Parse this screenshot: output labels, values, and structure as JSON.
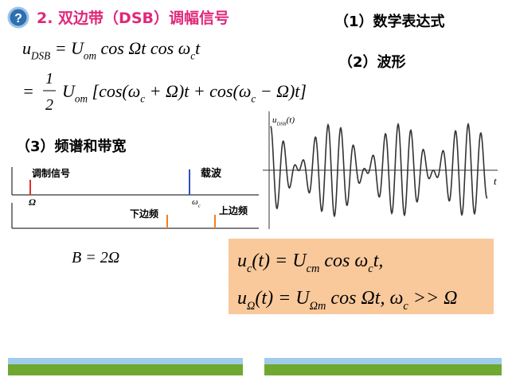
{
  "header": {
    "icon": "?",
    "title": "2. 双边带（DSB）调幅信号"
  },
  "sections": {
    "math": "（1）数学表达式",
    "wave": "（2）波形",
    "spectrum": "（3）频谱和带宽"
  },
  "formula1": [
    {
      "t": "u"
    },
    {
      "s": "DSB"
    },
    {
      "t": " = U"
    },
    {
      "s": "om"
    },
    {
      "t": " cos Ωt cos ω"
    },
    {
      "s": "c"
    },
    {
      "t": "t"
    }
  ],
  "formula2": {
    "prefix": "=",
    "numerator": "1",
    "denominator": "2",
    "parts": [
      {
        "t": "U"
      },
      {
        "s": "om"
      },
      {
        "t": " [cos(ω"
      },
      {
        "s": "c"
      },
      {
        "t": " + Ω)t + cos(ω"
      },
      {
        "s": "c"
      },
      {
        "t": " − Ω)t]"
      }
    ]
  },
  "waveform": {
    "y_label": [
      {
        "t": "u"
      },
      {
        "s": "DSB"
      },
      {
        "t": "(t)"
      }
    ],
    "x_label": "t"
  },
  "spectrum": {
    "modulating": "调制信号",
    "carrier": "载波",
    "omega": "Ω",
    "omega_c": [
      {
        "t": "ω"
      },
      {
        "s": "c"
      }
    ],
    "lower": "下边频",
    "upper": "上边频"
  },
  "bandwidth": [
    {
      "t": "B = 2Ω"
    }
  ],
  "box": {
    "line1": [
      {
        "t": "u"
      },
      {
        "s": "c"
      },
      {
        "t": "(t) = U"
      },
      {
        "s": "cm"
      },
      {
        "t": " cos ω"
      },
      {
        "s": "c"
      },
      {
        "t": "t,"
      }
    ],
    "line2": [
      {
        "t": "u"
      },
      {
        "s": "Ω"
      },
      {
        "t": "(t) = U"
      },
      {
        "s": "Ωm"
      },
      {
        "t": " cos Ωt, ω"
      },
      {
        "s": "c"
      },
      {
        "t": " >> Ω"
      }
    ]
  }
}
